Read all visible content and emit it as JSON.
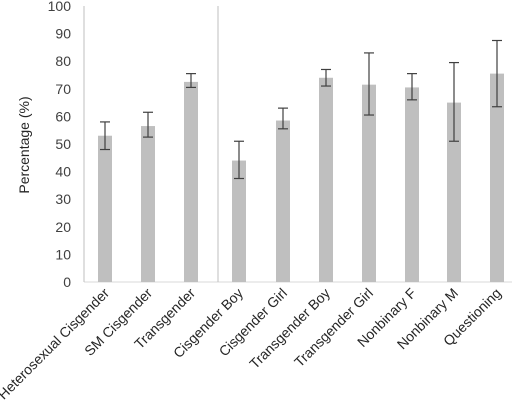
{
  "chart_data": {
    "type": "bar",
    "title": "",
    "xlabel": "",
    "ylabel": "Percentage (%)",
    "ylim": [
      0,
      100
    ],
    "yticks": [
      "0",
      "10",
      "20",
      "30",
      "40",
      "50",
      "60",
      "70",
      "80",
      "90",
      "100"
    ],
    "categories": [
      "Heterosexual Cisgender",
      "SM Cisgender",
      "Transgender",
      "Cisgender Boy",
      "Cisgender Girl",
      "Transgender Boy",
      "Transgender Girl",
      "Nonbinary F",
      "Nonbinary M",
      "Questioning"
    ],
    "values": [
      53,
      56.5,
      72.5,
      44,
      58.5,
      74,
      71.5,
      70.5,
      65,
      75.5
    ],
    "error_low": [
      48,
      52.5,
      70.5,
      37.5,
      55.5,
      71,
      60.5,
      66,
      51,
      63.5
    ],
    "error_high": [
      58,
      61.5,
      75.5,
      51,
      63,
      77,
      83,
      75.5,
      79.5,
      87.5
    ],
    "groups": [
      3,
      7
    ],
    "grid": false,
    "legend": "none",
    "colors": {
      "bar": "#bfbfbf",
      "error": "#404040",
      "axis": "#d9d9d9",
      "divider": "#bfbfbf"
    }
  }
}
